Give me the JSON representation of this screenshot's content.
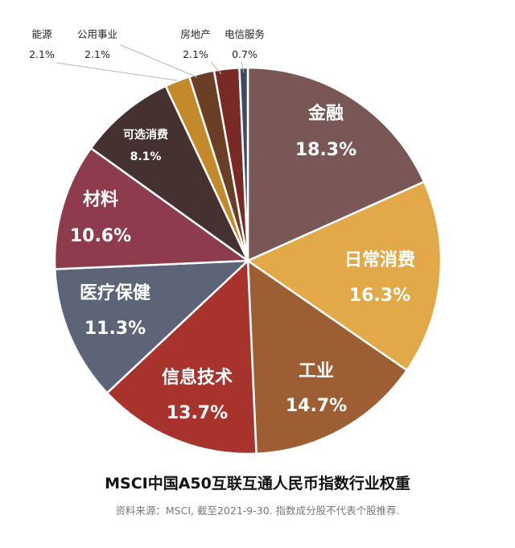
{
  "chart_data": {
    "type": "pie",
    "title": "MSCI中国A50互联互通人民币指数行业权重",
    "source": "资料来源：MSCI, 截至2021-9-30. 指数成分股不代表个股推荐.",
    "slices": [
      {
        "label": "金融",
        "value": 18.3,
        "display": "18.3%",
        "color": "#7a5757"
      },
      {
        "label": "日常消费",
        "value": 16.3,
        "display": "16.3%",
        "color": "#e3a948"
      },
      {
        "label": "工业",
        "value": 14.7,
        "display": "14.7%",
        "color": "#9e5e33"
      },
      {
        "label": "信息技术",
        "value": 13.7,
        "display": "13.7%",
        "color": "#a8332d"
      },
      {
        "label": "医疗保健",
        "value": 11.3,
        "display": "11.3%",
        "color": "#5d6478"
      },
      {
        "label": "材料",
        "value": 10.6,
        "display": "10.6%",
        "color": "#8d3b4d"
      },
      {
        "label": "可选消费",
        "value": 8.1,
        "display": "8.1%",
        "color": "#453130"
      },
      {
        "label": "能源",
        "value": 2.1,
        "display": "2.1%",
        "color": "#c48a2a"
      },
      {
        "label": "公用事业",
        "value": 2.1,
        "display": "2.1%",
        "color": "#6b3e26"
      },
      {
        "label": "房地产",
        "value": 2.1,
        "display": "2.1%",
        "color": "#7a2a25"
      },
      {
        "label": "电信服务",
        "value": 0.7,
        "display": "0.7%",
        "color": "#3d4a63"
      }
    ]
  }
}
